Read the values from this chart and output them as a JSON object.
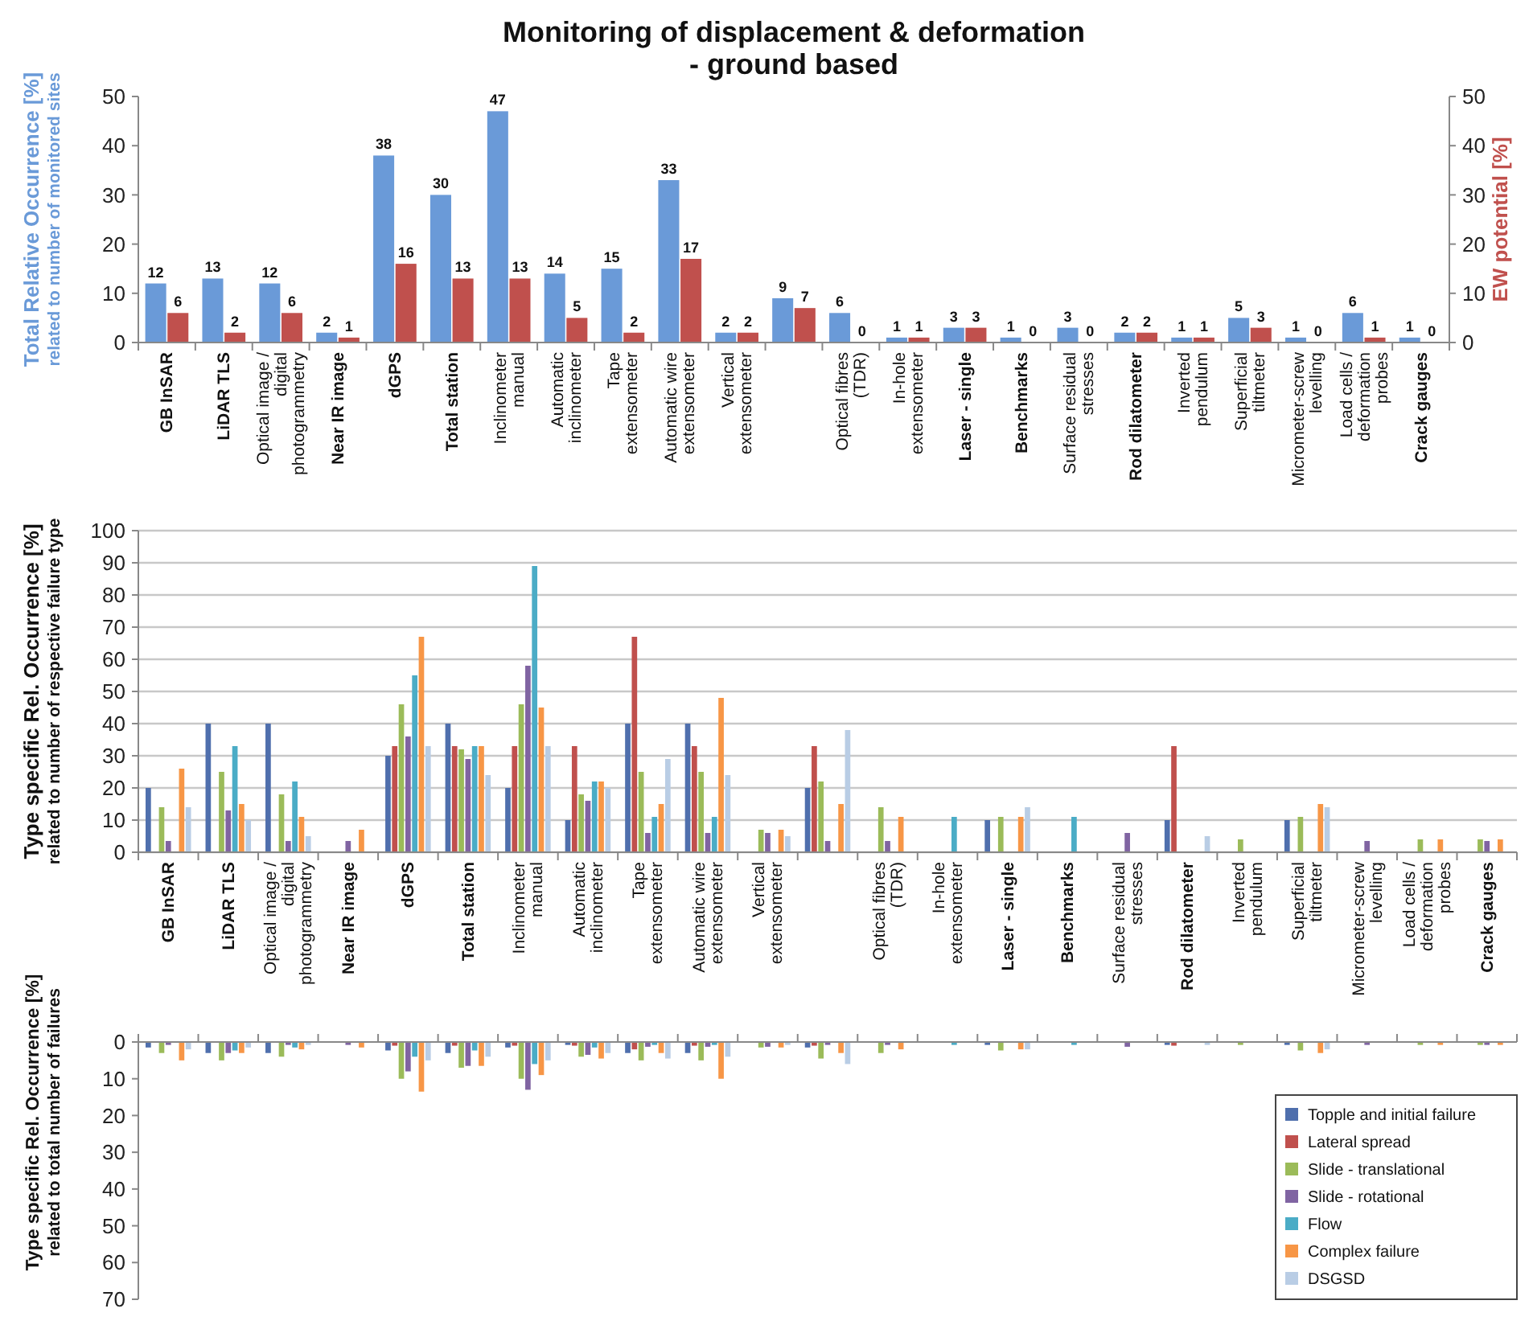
{
  "chart_data": [
    {
      "type": "bar",
      "title": "Monitoring of displacement & deformation\n- ground based",
      "ylabel": "Total Relative Occurrence [%]\nrelated to number of monitored sites",
      "y2label": "EW potential [%]",
      "categories": [
        "GB InSAR",
        "LiDAR TLS",
        "Optical image / digital photogrammetry",
        "Near IR image",
        "dGPS",
        "Total station",
        "Inclinometer manual",
        "Automatic inclinometer",
        "Tape extensometer",
        "Automatic wire extensometer",
        "Vertical extensometer",
        null,
        "Optical fibres (TDR)",
        "In-hole extensometer",
        "Laser - single",
        "Benchmarks",
        "Surface residual stresses",
        "Rod dilatometer",
        "Inverted pendulum",
        "Superficial tiltmeter",
        "Micrometer-screw levelling",
        "Load cells / deformation probes",
        "Crack gauges"
      ],
      "series": [
        {
          "color": "#6a9ad8",
          "values": [
            12,
            13,
            12,
            2,
            38,
            30,
            47,
            14,
            15,
            33,
            2,
            9,
            6,
            1,
            3,
            1,
            3,
            2,
            1,
            5,
            1,
            6,
            1
          ]
        },
        {
          "color": "#c0504d",
          "axis": "y2",
          "values": [
            6,
            2,
            6,
            1,
            16,
            13,
            13,
            5,
            2,
            17,
            2,
            7,
            0,
            1,
            3,
            0,
            0,
            2,
            1,
            3,
            0,
            1,
            0
          ]
        }
      ],
      "ylim": [
        0,
        50
      ],
      "yticks": [
        0,
        10,
        20,
        30,
        40,
        50
      ],
      "y2lim": [
        0,
        50
      ],
      "y2ticks": [
        0,
        10,
        20,
        30,
        40,
        50
      ],
      "data_labels": true
    },
    {
      "type": "bar",
      "ylabel": "Type specific Rel. Occurrence [%]\nrelated to number of respective failure type",
      "categories": [
        "GB InSAR",
        "LiDAR TLS",
        "Optical image / digital photogrammetry",
        "Near IR image",
        "dGPS",
        "Total station",
        "Inclinometer manual",
        "Automatic inclinometer",
        "Tape extensometer",
        "Automatic wire extensometer",
        "Vertical extensometer",
        null,
        "Optical fibres (TDR)",
        "In-hole extensometer",
        "Laser - single",
        "Benchmarks",
        "Surface residual stresses",
        "Rod dilatometer",
        "Inverted pendulum",
        "Superficial tiltmeter",
        "Micrometer-screw levelling",
        "Load cells / deformation probes",
        "Crack gauges"
      ],
      "series": [
        {
          "color": "#4f6fad",
          "values": [
            20,
            40,
            40,
            null,
            30,
            40,
            20,
            10,
            40,
            40,
            null,
            20,
            null,
            null,
            10,
            null,
            null,
            10,
            null,
            10,
            null,
            null,
            null
          ]
        },
        {
          "color": "#c0504d",
          "values": [
            null,
            null,
            null,
            null,
            33,
            33,
            33,
            33,
            67,
            33,
            null,
            33,
            null,
            null,
            null,
            null,
            null,
            33,
            null,
            null,
            null,
            null,
            null
          ]
        },
        {
          "color": "#9bbb59",
          "values": [
            14,
            25,
            18,
            null,
            46,
            32,
            46,
            18,
            25,
            25,
            7,
            22,
            14,
            null,
            11,
            null,
            null,
            null,
            4,
            11,
            null,
            4,
            4
          ]
        },
        {
          "color": "#8064a2",
          "values": [
            3.5,
            13,
            3.5,
            3.5,
            36,
            29,
            58,
            16,
            6,
            6,
            6,
            3.5,
            3.5,
            null,
            null,
            null,
            6,
            null,
            null,
            null,
            3.5,
            null,
            3.5
          ]
        },
        {
          "color": "#4bacc6",
          "values": [
            null,
            33,
            22,
            null,
            55,
            33,
            89,
            22,
            11,
            11,
            null,
            null,
            null,
            11,
            null,
            11,
            null,
            null,
            null,
            null,
            null,
            null,
            null
          ]
        },
        {
          "color": "#f79646",
          "values": [
            26,
            15,
            11,
            7,
            67,
            33,
            45,
            22,
            15,
            48,
            7,
            15,
            11,
            null,
            11,
            null,
            null,
            null,
            null,
            15,
            null,
            4,
            4
          ]
        },
        {
          "color": "#b9cde5",
          "values": [
            14,
            10,
            5,
            null,
            33,
            24,
            33,
            20,
            29,
            24,
            5,
            38,
            null,
            null,
            14,
            null,
            null,
            5,
            null,
            14,
            null,
            null,
            null
          ]
        }
      ],
      "ylim": [
        0,
        100
      ],
      "yticks": [
        0,
        10,
        20,
        30,
        40,
        50,
        60,
        70,
        80,
        90,
        100
      ],
      "grid": "y"
    },
    {
      "type": "bar",
      "ylabel": "Type specific Rel. Occurrence [%]\nrelated to total number of failures",
      "categories": [
        null,
        null,
        null,
        null,
        null,
        null,
        null,
        null,
        null,
        null,
        null,
        null,
        null,
        null,
        null,
        null,
        null,
        null,
        null,
        null,
        null,
        null,
        null
      ],
      "series": [
        {
          "name": "Topple and initial failure",
          "color": "#4f6fad",
          "values": [
            1.5,
            3,
            3,
            null,
            2.3,
            3,
            1.5,
            0.8,
            3,
            3,
            null,
            1.5,
            null,
            null,
            0.8,
            null,
            null,
            0.8,
            null,
            0.8,
            null,
            null,
            null
          ]
        },
        {
          "name": "Lateral spread",
          "color": "#c0504d",
          "values": [
            null,
            null,
            null,
            null,
            1,
            1,
            1,
            1,
            2,
            1,
            null,
            1,
            null,
            null,
            null,
            null,
            null,
            1,
            null,
            null,
            null,
            null,
            null
          ]
        },
        {
          "name": "Slide - translational",
          "color": "#9bbb59",
          "values": [
            3,
            5,
            4,
            null,
            10,
            7,
            10,
            4,
            5,
            5,
            1.5,
            4.5,
            3,
            null,
            2.3,
            null,
            null,
            null,
            0.8,
            2.3,
            null,
            0.8,
            0.8
          ]
        },
        {
          "name": "Slide - rotational",
          "color": "#8064a2",
          "values": [
            0.8,
            3,
            0.8,
            0.8,
            8,
            6.5,
            13,
            3.5,
            1.3,
            1.3,
            1.3,
            0.8,
            0.8,
            null,
            null,
            null,
            1.3,
            null,
            null,
            null,
            0.8,
            null,
            0.8
          ]
        },
        {
          "name": "Flow",
          "color": "#4bacc6",
          "values": [
            null,
            2.3,
            1.5,
            null,
            4,
            2.3,
            6,
            1.5,
            0.8,
            0.8,
            null,
            null,
            null,
            0.8,
            null,
            0.8,
            null,
            null,
            null,
            null,
            null,
            null,
            null
          ]
        },
        {
          "name": "Complex failure",
          "color": "#f79646",
          "values": [
            5,
            3,
            2,
            1.5,
            13.5,
            6.5,
            9,
            4.5,
            3,
            10,
            1.5,
            3,
            2,
            null,
            2,
            null,
            null,
            null,
            null,
            3,
            null,
            0.8,
            0.8
          ]
        },
        {
          "name": "DSGSD",
          "color": "#b9cde5",
          "values": [
            2,
            1.5,
            0.8,
            null,
            5,
            4,
            5,
            3,
            4.5,
            4,
            0.8,
            6,
            null,
            null,
            2,
            null,
            null,
            0.8,
            null,
            2,
            null,
            null,
            null
          ]
        }
      ],
      "ylim": [
        70,
        0
      ],
      "yticks": [
        0,
        10,
        20,
        30,
        40,
        50,
        60,
        70
      ],
      "tick_labels": "y",
      "legend": "bottom right"
    }
  ]
}
